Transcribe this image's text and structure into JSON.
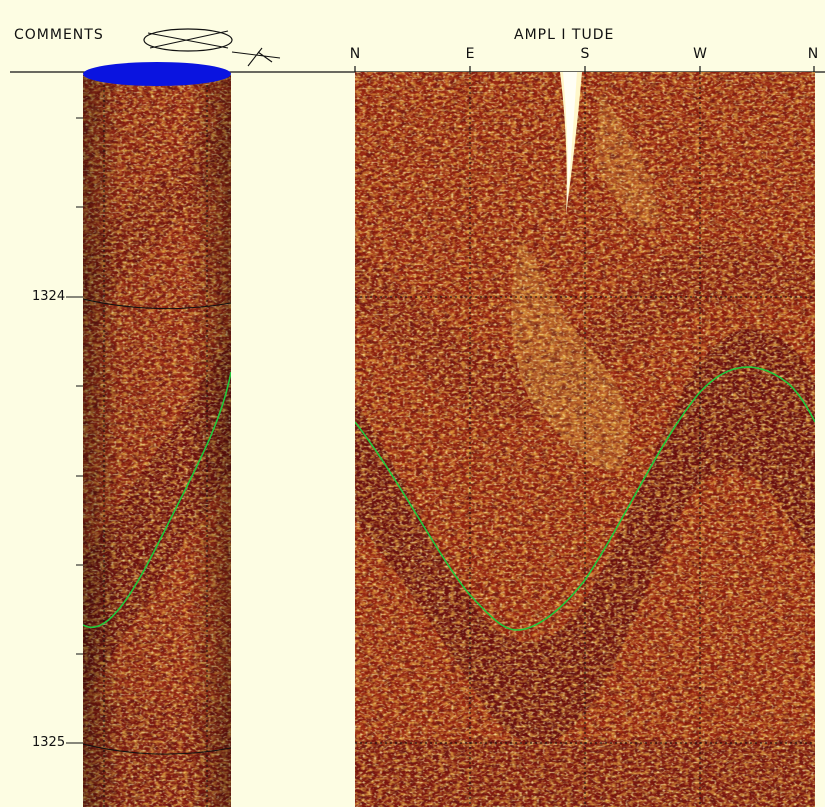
{
  "header": {
    "comments_label": "COMMENTS",
    "amplitude_label": "AMPL I TUDE"
  },
  "directions": [
    "N",
    "E",
    "S",
    "W",
    "N"
  ],
  "depth_track": {
    "labels": [
      {
        "text": "1324",
        "value": 1324
      },
      {
        "text": "1325",
        "value": 1325
      }
    ]
  },
  "colors": {
    "background": "#fdfde3",
    "cylinder_cap": "#0a14e0",
    "image_dark": "#6e1313",
    "image_mid": "#9c2a14",
    "image_bright": "#e6a83a",
    "image_highlight": "#fff3a8",
    "sine_pick": "#22c93a"
  },
  "icons": {
    "compass": "compass-icon",
    "north_arrow": "north-arrow-icon"
  }
}
